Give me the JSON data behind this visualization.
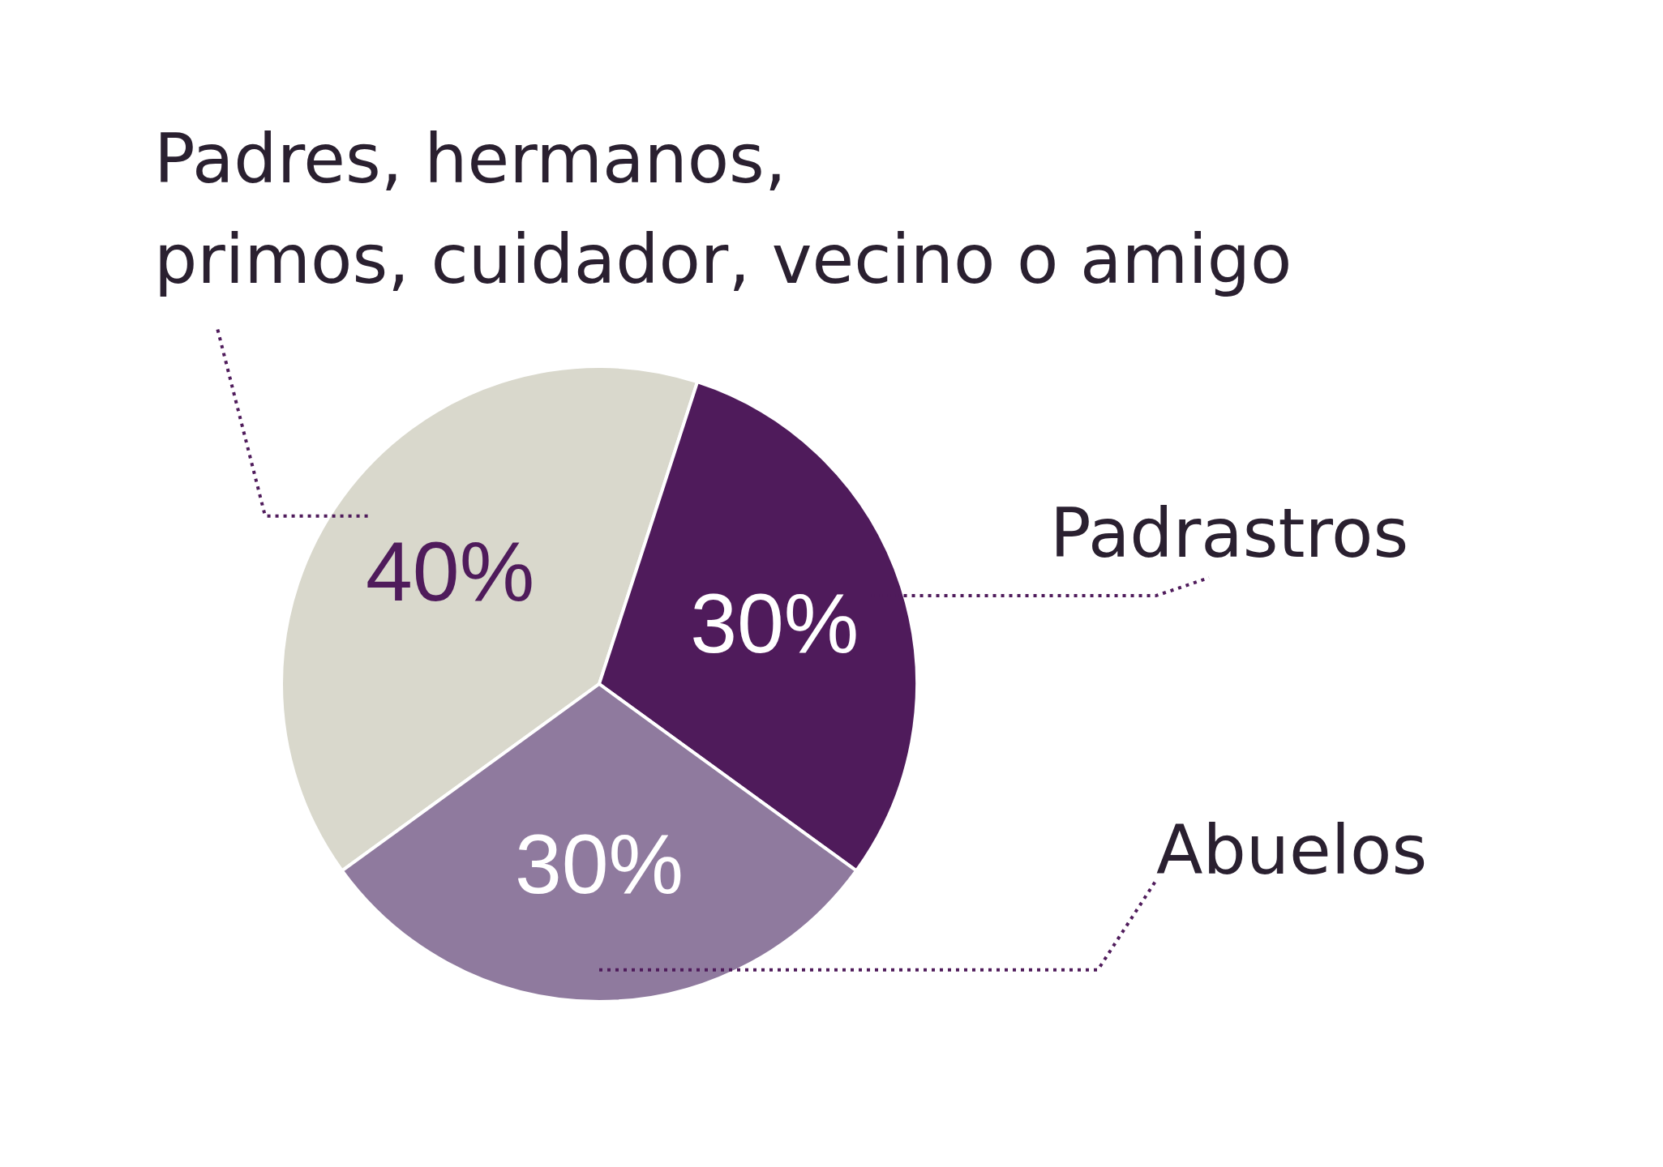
{
  "chart_data": {
    "type": "pie",
    "categories": [
      "Padres, hermanos, primos, cuidador, vecino o amigo",
      "Padrastros",
      "Abuelos"
    ],
    "values": [
      40,
      30,
      30
    ],
    "value_labels": [
      "40%",
      "30%",
      "30%"
    ],
    "colors": [
      "#d9d8cc",
      "#4f1b5b",
      "#8f7a9e"
    ]
  }
}
